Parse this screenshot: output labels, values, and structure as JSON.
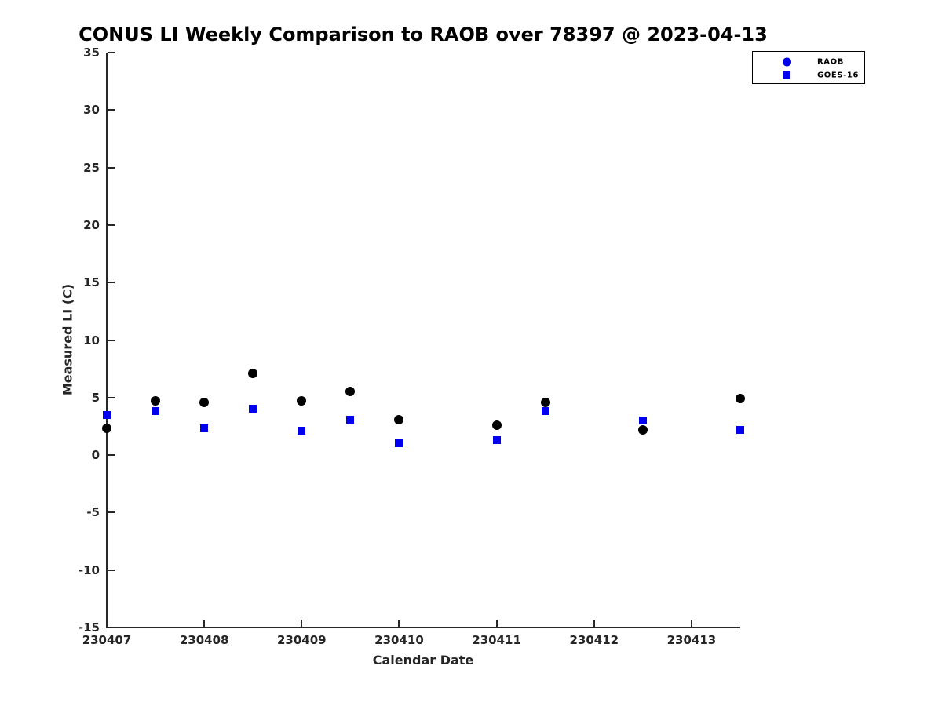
{
  "chart_data": {
    "type": "scatter",
    "title": "CONUS LI Weekly Comparison to RAOB over 78397 @ 2023-04-13",
    "xlabel": "Calendar Date",
    "ylabel": "Measured LI (C)",
    "xlim": [
      230407,
      230413.5
    ],
    "ylim": [
      -15,
      35
    ],
    "xticks": [
      230407,
      230408,
      230409,
      230410,
      230411,
      230412,
      230413
    ],
    "xtick_labels": [
      "230407",
      "230408",
      "230409",
      "230410",
      "230411",
      "230412",
      "230413"
    ],
    "yticks": [
      35,
      30,
      25,
      20,
      15,
      10,
      5,
      0,
      -5,
      -10,
      -15
    ],
    "ytick_labels": [
      "35",
      "30",
      "25",
      "20",
      "15",
      "10",
      "5",
      "0",
      "-5",
      "-10",
      "-15"
    ],
    "grid": false,
    "legend_position": "top-right",
    "series": [
      {
        "name": "RAOB",
        "marker": "circle",
        "color": "#000000",
        "legend_marker_color": "#0000EE",
        "points": [
          [
            230407.0,
            2.3
          ],
          [
            230407.5,
            4.7
          ],
          [
            230408.0,
            4.6
          ],
          [
            230408.5,
            7.1
          ],
          [
            230409.0,
            4.7
          ],
          [
            230409.5,
            5.5
          ],
          [
            230410.0,
            3.1
          ],
          [
            230411.0,
            2.6
          ],
          [
            230411.5,
            4.6
          ],
          [
            230412.5,
            2.2
          ],
          [
            230413.5,
            4.9
          ]
        ]
      },
      {
        "name": "GOES-16",
        "marker": "square",
        "color": "#0000EE",
        "legend_marker_color": "#0000EE",
        "points": [
          [
            230407.0,
            3.5
          ],
          [
            230407.5,
            3.8
          ],
          [
            230408.0,
            2.3
          ],
          [
            230408.5,
            4.0
          ],
          [
            230409.0,
            2.1
          ],
          [
            230409.5,
            3.1
          ],
          [
            230410.0,
            1.0
          ],
          [
            230411.0,
            1.3
          ],
          [
            230411.5,
            3.8
          ],
          [
            230412.5,
            3.0
          ],
          [
            230413.5,
            2.2
          ]
        ]
      }
    ],
    "axis_color": "#262626"
  }
}
